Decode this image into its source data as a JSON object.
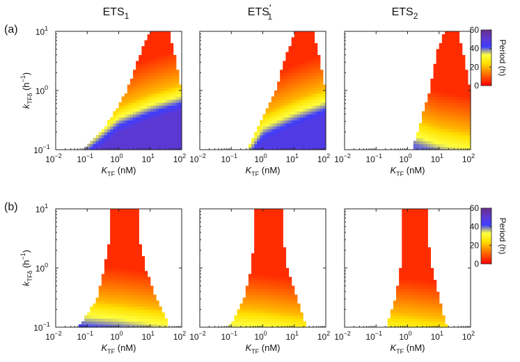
{
  "figure": {
    "columns": [
      {
        "main": "ETS",
        "sub": "1",
        "prime": ""
      },
      {
        "main": "ETS",
        "sub": "1",
        "prime": "′"
      },
      {
        "main": "ETS",
        "sub": "2",
        "prime": ""
      }
    ],
    "colorbar": {
      "label": "Period (h)",
      "ticks": [
        "0",
        "20",
        "40",
        "60"
      ],
      "colors": [
        "#ff0000",
        "#ff6a00",
        "#ffe000",
        "#ffff40",
        "#3c3cff",
        "#5a3ad8",
        "#6a2e8c"
      ]
    }
  },
  "chart_data": [
    {
      "type": "heatmap",
      "panel": "(a)",
      "column": "ETS1",
      "x_scale": "log",
      "y_scale": "log",
      "xlim": [
        0.01,
        100
      ],
      "ylim": [
        0.1,
        10
      ],
      "xlabel": {
        "main": "K",
        "sub": "TF",
        "unit": " (nM)"
      },
      "ylabel": {
        "main": "k",
        "sub": "TFδ",
        "unit_main": " (h",
        "unit_sup": "−1",
        "unit_end": ")"
      },
      "xticks": [
        {
          "base": "10",
          "exp": "−2"
        },
        {
          "base": "10",
          "exp": "−1"
        },
        {
          "base": "10",
          "exp": "0"
        },
        {
          "base": "10",
          "exp": "1"
        },
        {
          "base": "10",
          "exp": "2"
        }
      ],
      "yticks": [
        {
          "base": "10",
          "exp": "−1"
        },
        {
          "base": "10",
          "exp": "0"
        },
        {
          "base": "10",
          "exp": "1"
        }
      ],
      "clim": [
        0,
        60
      ],
      "region": {
        "left": [
          0.08,
          0.2,
          0.6,
          1.8,
          5.5,
          10
        ],
        "right": [
          100,
          100,
          100,
          100,
          55,
          38
        ],
        "y": [
          0.1,
          0.17,
          0.35,
          1.0,
          5.0,
          10
        ]
      },
      "period": {
        "x": [
          0.1,
          1,
          10,
          100
        ],
        "ky_at_20h": [
          0.2,
          0.55,
          0.9,
          1.3
        ],
        "min_h": 5,
        "max_h": 50
      }
    },
    {
      "type": "heatmap",
      "panel": "(a)",
      "column": "ETS1′",
      "x_scale": "log",
      "y_scale": "log",
      "xlim": [
        0.01,
        100
      ],
      "ylim": [
        0.1,
        10
      ],
      "xlabel": {
        "main": "K",
        "sub": "TF",
        "unit": " (nM)"
      },
      "xticks": [
        {
          "base": "10",
          "exp": "−2"
        },
        {
          "base": "10",
          "exp": "−1"
        },
        {
          "base": "10",
          "exp": "0"
        },
        {
          "base": "10",
          "exp": "1"
        },
        {
          "base": "10",
          "exp": "2"
        }
      ],
      "clim": [
        0,
        60
      ],
      "region": {
        "left": [
          0.3,
          0.45,
          0.9,
          2.5,
          6.5,
          11
        ],
        "right": [
          100,
          100,
          100,
          100,
          55,
          38
        ],
        "y": [
          0.1,
          0.15,
          0.33,
          1.0,
          5.0,
          10
        ]
      },
      "period": {
        "x": [
          0.3,
          1,
          10,
          100
        ],
        "ky_at_20h": [
          0.16,
          0.4,
          0.7,
          1.1
        ],
        "min_h": 5,
        "max_h": 47
      }
    },
    {
      "type": "heatmap",
      "panel": "(a)",
      "column": "ETS2",
      "x_scale": "log",
      "y_scale": "log",
      "xlim": [
        0.01,
        100
      ],
      "ylim": [
        0.1,
        10
      ],
      "xlabel": {
        "main": "K",
        "sub": "TF",
        "unit": " (nM)"
      },
      "xticks": [
        {
          "base": "10",
          "exp": "−2"
        },
        {
          "base": "10",
          "exp": "−1"
        },
        {
          "base": "10",
          "exp": "0"
        },
        {
          "base": "10",
          "exp": "1"
        },
        {
          "base": "10",
          "exp": "2"
        }
      ],
      "clim": [
        0,
        60
      ],
      "region": {
        "left": [
          1.4,
          1.6,
          2.6,
          5.0,
          9.0,
          15
        ],
        "right": [
          100,
          100,
          100,
          100,
          55,
          38
        ],
        "y": [
          0.1,
          0.13,
          0.3,
          1.0,
          5.0,
          10
        ]
      },
      "period": {
        "x": [
          1.5,
          10,
          100
        ],
        "ky_at_20h": [
          0.35,
          0.25,
          0.2
        ],
        "min_h": 5,
        "max_h": 40
      }
    },
    {
      "type": "heatmap",
      "panel": "(b)",
      "column": "ETS1",
      "x_scale": "log",
      "y_scale": "log",
      "xlim": [
        0.01,
        100
      ],
      "ylim": [
        0.1,
        10
      ],
      "xlabel": {
        "main": "K",
        "sub": "TF",
        "unit": " (nM)"
      },
      "ylabel": {
        "main": "k",
        "sub": "TFδ",
        "unit_main": " (h",
        "unit_sup": "−1",
        "unit_end": ")"
      },
      "xticks": [
        {
          "base": "10",
          "exp": "−2"
        },
        {
          "base": "10",
          "exp": "−1"
        },
        {
          "base": "10",
          "exp": "0"
        },
        {
          "base": "10",
          "exp": "1"
        },
        {
          "base": "10",
          "exp": "2"
        }
      ],
      "yticks": [
        {
          "base": "10",
          "exp": "−1"
        },
        {
          "base": "10",
          "exp": "0"
        },
        {
          "base": "10",
          "exp": "1"
        }
      ],
      "clim": [
        0,
        60
      ],
      "region": {
        "left": [
          0.05,
          0.09,
          0.2,
          0.35,
          0.5,
          0.5
        ],
        "right": [
          40,
          30,
          15,
          7,
          4.5,
          4.5
        ],
        "y": [
          0.1,
          0.15,
          0.3,
          1.0,
          3.0,
          10
        ]
      },
      "period": {
        "x": [
          0.05,
          1,
          40
        ],
        "ky_at_20h": [
          0.3,
          0.26,
          0.2
        ],
        "min_h": 5,
        "max_h": 42
      }
    },
    {
      "type": "heatmap",
      "panel": "(b)",
      "column": "ETS1′",
      "x_scale": "log",
      "y_scale": "log",
      "xlim": [
        0.01,
        100
      ],
      "ylim": [
        0.1,
        10
      ],
      "xlabel": {
        "main": "K",
        "sub": "TF",
        "unit": " (nM)"
      },
      "xticks": [
        {
          "base": "10",
          "exp": "−2"
        },
        {
          "base": "10",
          "exp": "−1"
        },
        {
          "base": "10",
          "exp": "0"
        },
        {
          "base": "10",
          "exp": "1"
        },
        {
          "base": "10",
          "exp": "2"
        }
      ],
      "clim": [
        0,
        60
      ],
      "region": {
        "left": [
          0.08,
          0.12,
          0.25,
          0.42,
          0.55,
          0.55
        ],
        "right": [
          25,
          20,
          12,
          6,
          4.5,
          4.5
        ],
        "y": [
          0.1,
          0.14,
          0.3,
          1.0,
          3.0,
          10
        ]
      },
      "period": {
        "x": [
          0.08,
          1,
          25
        ],
        "ky_at_20h": [
          0.22,
          0.2,
          0.16
        ],
        "min_h": 5,
        "max_h": 40
      }
    },
    {
      "type": "heatmap",
      "panel": "(b)",
      "column": "ETS2",
      "x_scale": "log",
      "y_scale": "log",
      "xlim": [
        0.01,
        100
      ],
      "ylim": [
        0.1,
        10
      ],
      "xlabel": {
        "main": "K",
        "sub": "TF",
        "unit": " (nM)"
      },
      "xticks": [
        {
          "base": "10",
          "exp": "−2"
        },
        {
          "base": "10",
          "exp": "−1"
        },
        {
          "base": "10",
          "exp": "0"
        },
        {
          "base": "10",
          "exp": "1"
        },
        {
          "base": "10",
          "exp": "2"
        }
      ],
      "clim": [
        0,
        60
      ],
      "region": {
        "left": [
          0.2,
          0.25,
          0.4,
          0.6,
          0.7,
          0.7
        ],
        "right": [
          18,
          15,
          10,
          6,
          4.5,
          4.5
        ],
        "y": [
          0.1,
          0.13,
          0.3,
          1.0,
          3.0,
          10
        ]
      },
      "period": {
        "x": [
          0.2,
          1,
          18
        ],
        "ky_at_20h": [
          0.18,
          0.17,
          0.14
        ],
        "min_h": 5,
        "max_h": 38
      }
    }
  ]
}
